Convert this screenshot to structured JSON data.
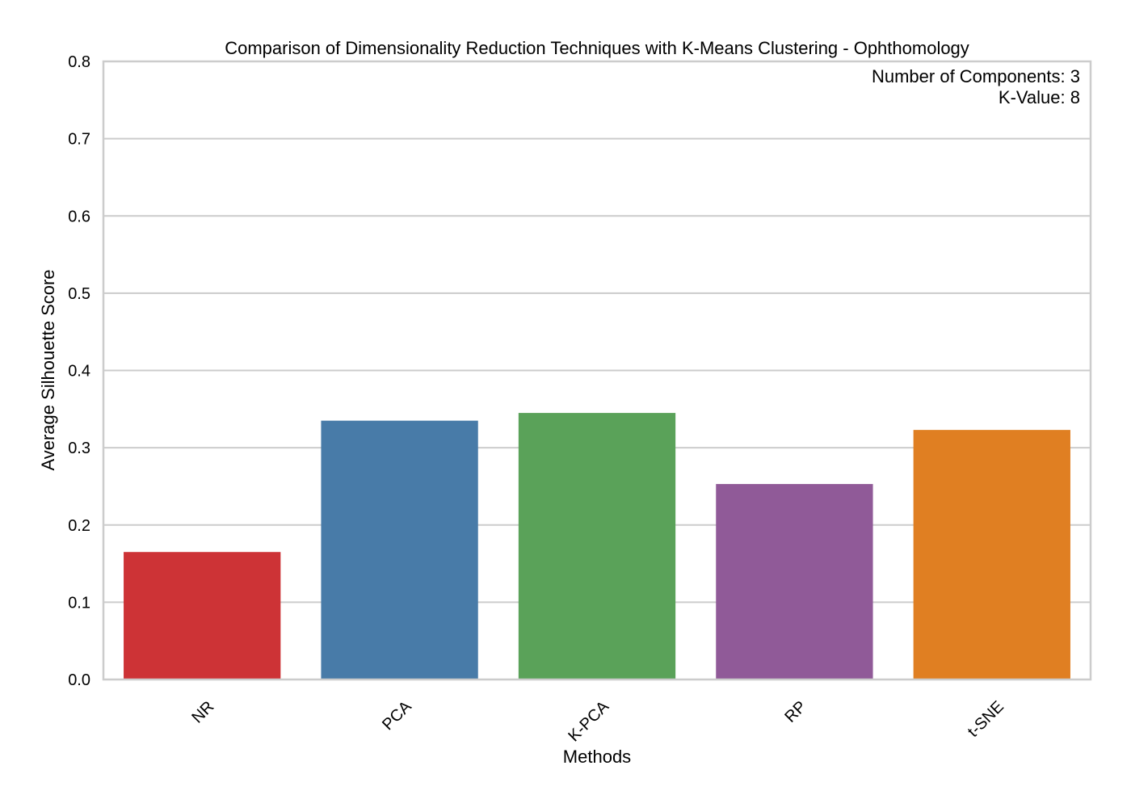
{
  "chart_data": {
    "type": "bar",
    "title": "Comparison of Dimensionality Reduction Techniques with K-Means Clustering - Ophthomology",
    "xlabel": "Methods",
    "ylabel": "Average Silhouette Score",
    "categories": [
      "NR",
      "PCA",
      "K-PCA",
      "RP",
      "t-SNE"
    ],
    "values": [
      0.165,
      0.335,
      0.345,
      0.253,
      0.323
    ],
    "colors": [
      "#cd3336",
      "#487ba8",
      "#5aa259",
      "#905a98",
      "#e07f22"
    ],
    "ylim": [
      0,
      0.8
    ],
    "yticks": [
      "0.0",
      "0.1",
      "0.2",
      "0.3",
      "0.4",
      "0.5",
      "0.6",
      "0.7",
      "0.8"
    ],
    "grid": "horizontal",
    "annotations": [
      "Number of Components: 3",
      "K-Value: 8"
    ]
  }
}
